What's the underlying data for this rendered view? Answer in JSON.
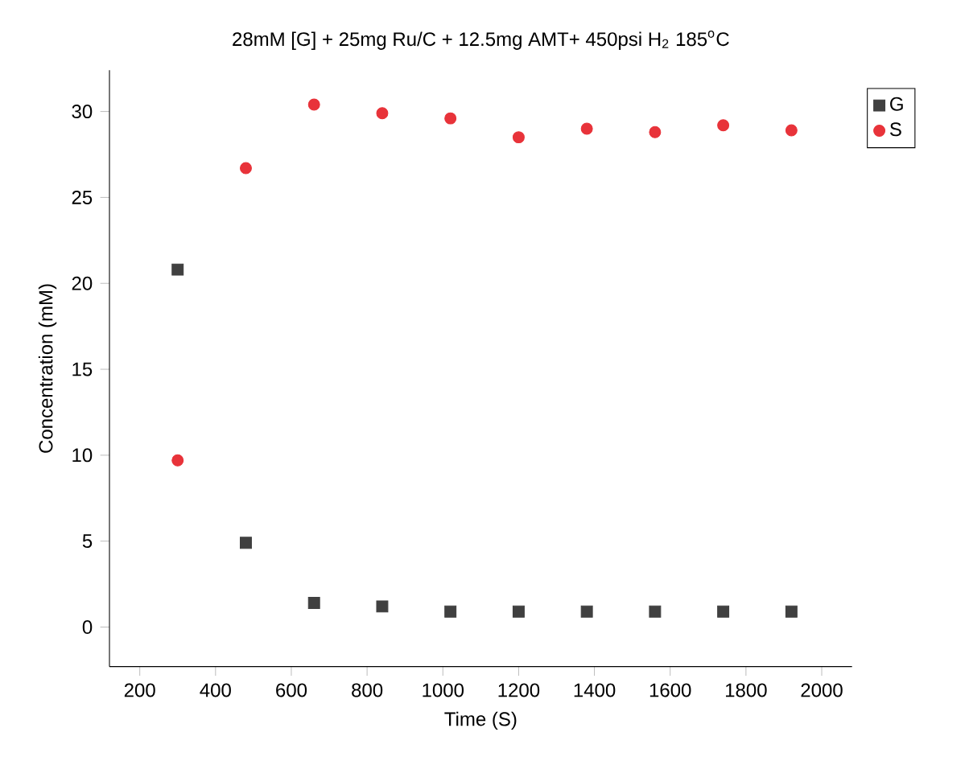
{
  "chart_data": {
    "type": "scatter",
    "title": "28mM [G] + 25mg Ru/C + 12.5mg AMT+ 450psi H$_{2}$ 185$^{o}$C",
    "xlabel": "Time (S)",
    "ylabel": "Concentration (mM)",
    "x": [
      300,
      480,
      660,
      840,
      1020,
      1200,
      1380,
      1560,
      1740,
      1920
    ],
    "series": [
      {
        "name": "G",
        "color": "#404040",
        "marker": "square",
        "values": [
          20.8,
          4.9,
          1.4,
          1.2,
          0.9,
          0.9,
          0.9,
          0.9,
          0.9,
          0.9
        ]
      },
      {
        "name": "S",
        "color": "#e8333a",
        "marker": "circle",
        "values": [
          9.7,
          26.7,
          30.4,
          29.9,
          29.6,
          28.5,
          29.0,
          28.8,
          29.2,
          28.9
        ]
      }
    ],
    "xlim": [
      120,
      2080
    ],
    "ylim": [
      -2.3,
      32.4
    ],
    "xticks": [
      200,
      400,
      600,
      800,
      1000,
      1200,
      1400,
      1600,
      1800,
      2000
    ],
    "yticks": [
      0,
      5,
      10,
      15,
      20,
      25,
      30
    ],
    "grid": false,
    "legend": "top right"
  }
}
